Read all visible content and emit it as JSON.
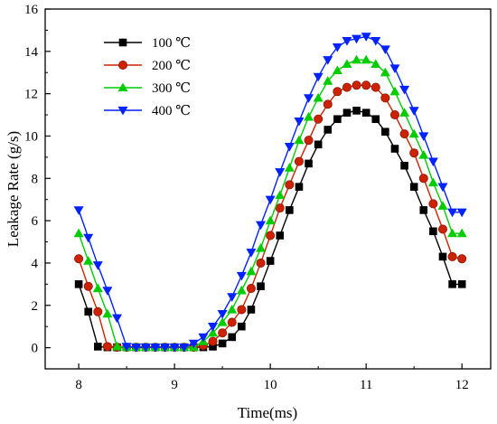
{
  "chart_data": {
    "type": "line",
    "xlabel": "Time(ms)",
    "ylabel": "Leakage Rate (g/s)",
    "xlim": [
      7.65,
      12.3
    ],
    "ylim": [
      -1,
      16
    ],
    "x_ticks": [
      8,
      9,
      10,
      11,
      12
    ],
    "y_ticks": [
      0,
      2,
      4,
      6,
      8,
      10,
      12,
      14,
      16
    ],
    "grid": false,
    "legend_position": "top-left",
    "x": [
      8.0,
      8.1,
      8.2,
      8.3,
      8.4,
      8.5,
      8.6,
      8.7,
      8.8,
      8.9,
      9.0,
      9.1,
      9.2,
      9.3,
      9.4,
      9.5,
      9.6,
      9.7,
      9.8,
      9.9,
      10.0,
      10.1,
      10.2,
      10.3,
      10.4,
      10.5,
      10.6,
      10.7,
      10.8,
      10.9,
      11.0,
      11.1,
      11.2,
      11.3,
      11.4,
      11.5,
      11.6,
      11.7,
      11.8,
      11.9,
      12.0
    ],
    "series": [
      {
        "name": "100 ℃",
        "color": "#000000",
        "marker": "square",
        "values": [
          3.0,
          1.7,
          0.05,
          0.02,
          0.02,
          0.02,
          0.02,
          0.02,
          0.02,
          0.02,
          0.02,
          0.02,
          0.02,
          0.02,
          0.05,
          0.2,
          0.5,
          1.0,
          1.8,
          2.9,
          4.1,
          5.3,
          6.5,
          7.6,
          8.7,
          9.6,
          10.3,
          10.8,
          11.1,
          11.2,
          11.1,
          10.8,
          10.2,
          9.4,
          8.6,
          7.6,
          6.5,
          5.5,
          4.3,
          3.0,
          3.0
        ]
      },
      {
        "name": "200 ℃",
        "color": "#cc2200",
        "marker": "circle",
        "values": [
          4.2,
          2.9,
          1.7,
          0.05,
          0.02,
          0.02,
          0.02,
          0.02,
          0.02,
          0.02,
          0.02,
          0.02,
          0.02,
          0.1,
          0.3,
          0.7,
          1.2,
          1.8,
          2.8,
          4.0,
          5.3,
          6.6,
          7.7,
          8.8,
          9.8,
          10.8,
          11.5,
          12.1,
          12.3,
          12.4,
          12.4,
          12.3,
          11.8,
          11.0,
          10.1,
          9.2,
          8.0,
          6.8,
          5.6,
          4.3,
          4.2
        ]
      },
      {
        "name": "300 ℃",
        "color": "#00cc00",
        "marker": "triangle-up",
        "values": [
          5.4,
          4.1,
          2.8,
          1.6,
          0.05,
          0.02,
          0.02,
          0.02,
          0.02,
          0.02,
          0.02,
          0.02,
          0.02,
          0.3,
          0.7,
          1.2,
          1.8,
          2.7,
          3.6,
          4.7,
          6.0,
          7.2,
          8.5,
          9.8,
          10.9,
          11.8,
          12.6,
          13.1,
          13.4,
          13.6,
          13.6,
          13.4,
          13.0,
          12.1,
          11.1,
          10.1,
          9.1,
          7.8,
          6.7,
          5.4,
          5.4
        ]
      },
      {
        "name": "400 ℃",
        "color": "#0022ff",
        "marker": "triangle-down",
        "values": [
          6.5,
          5.2,
          3.9,
          2.7,
          1.4,
          0.05,
          0.02,
          0.02,
          0.02,
          0.02,
          0.02,
          0.02,
          0.2,
          0.5,
          1.0,
          1.6,
          2.4,
          3.4,
          4.5,
          5.8,
          7.0,
          8.3,
          9.5,
          10.7,
          11.8,
          12.8,
          13.6,
          14.2,
          14.5,
          14.6,
          14.7,
          14.5,
          14.1,
          13.2,
          12.2,
          11.2,
          10.0,
          8.8,
          7.6,
          6.4,
          6.4
        ]
      }
    ]
  }
}
